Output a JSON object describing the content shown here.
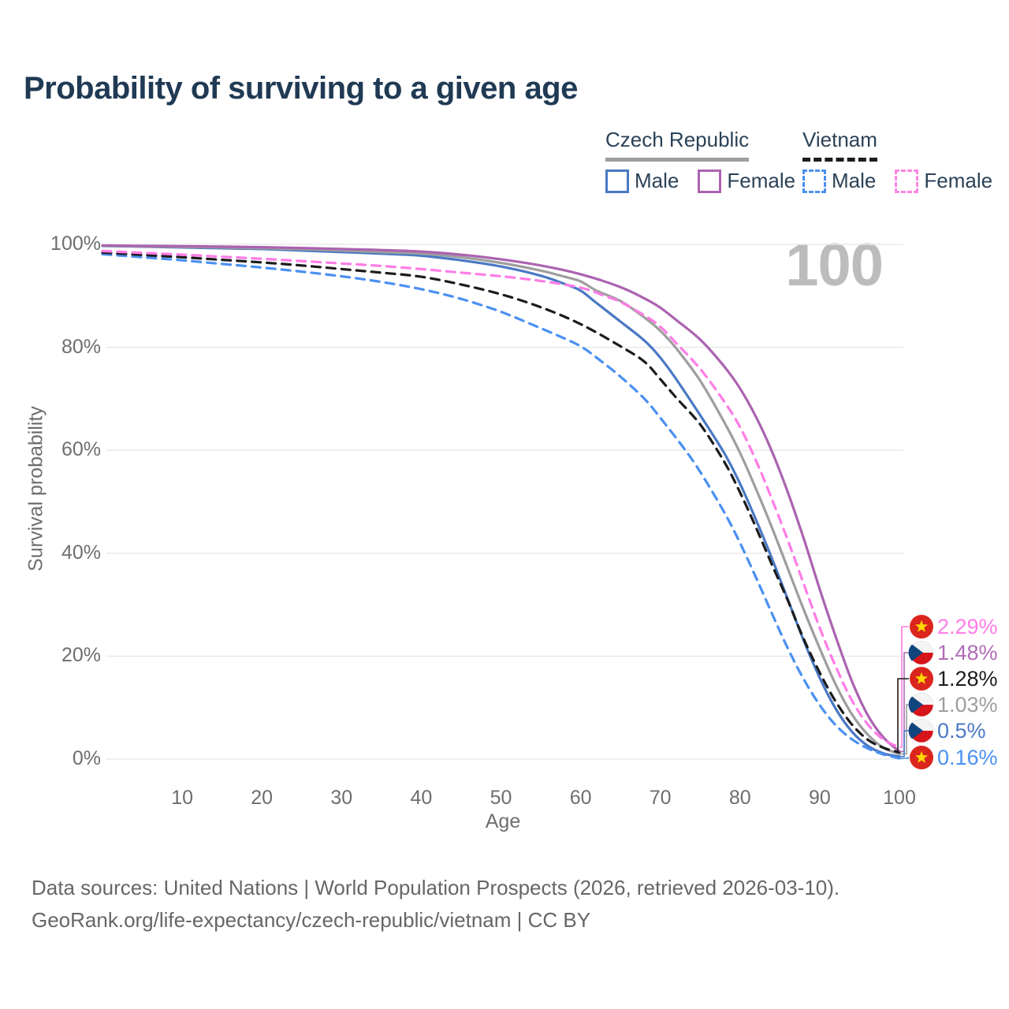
{
  "title": "Probability of surviving to a given age",
  "watermark": "100",
  "colors": {
    "title_text": "#203a54",
    "legend_text": "#2b4257",
    "axis_text": "#6e6e6e",
    "footer_text": "#666666",
    "watermark_text": "#bcbcbc",
    "gridline": "#eaeaea",
    "czech_male": "#4a79c4",
    "czech_female": "#ab63b0",
    "czech_both": "#9e9e9e",
    "vietnam_male": "#4a90f2",
    "vietnam_female": "#ff7ce6",
    "vietnam_both": "#1c1c1c",
    "flag_vietnam_red": "#da251d",
    "flag_vietnam_star": "#ffd800",
    "flag_czech_white": "#f4f4f4",
    "flag_czech_red": "#d7141a",
    "flag_czech_blue": "#11457e"
  },
  "legend": {
    "groups": [
      {
        "label": "Czech Republic",
        "line_color": "#9e9e9e",
        "line_style": "solid",
        "items": [
          {
            "label": "Male",
            "color": "#4a79c4",
            "style": "solid"
          },
          {
            "label": "Female",
            "color": "#ab63b0",
            "style": "solid"
          }
        ]
      },
      {
        "label": "Vietnam",
        "line_color": "#1c1c1c",
        "line_style": "dashed",
        "items": [
          {
            "label": "Male",
            "color": "#4a90f2",
            "style": "dashed"
          },
          {
            "label": "Female",
            "color": "#ff85e3",
            "style": "dashed"
          }
        ]
      }
    ]
  },
  "chart_data": {
    "type": "line",
    "title": "Probability of surviving to a given age",
    "xlabel": "Age",
    "ylabel": "Survival probability",
    "xlim": [
      0,
      100
    ],
    "ylim": [
      0,
      100
    ],
    "grid": "horizontal",
    "x_ticks": [
      10,
      20,
      30,
      40,
      50,
      60,
      70,
      80,
      90,
      100
    ],
    "y_ticks": [
      {
        "pct": 0,
        "label": "0%"
      },
      {
        "pct": 20,
        "label": "20%"
      },
      {
        "pct": 40,
        "label": "40%"
      },
      {
        "pct": 60,
        "label": "60%"
      },
      {
        "pct": 80,
        "label": "80%"
      },
      {
        "pct": 100,
        "label": "100%"
      }
    ],
    "series": [
      {
        "key": "czech_male",
        "country": "Czech Republic",
        "sex": "Male",
        "color": "#4a79c4",
        "dash": false,
        "points": [
          [
            0,
            99.7
          ],
          [
            5,
            99.55
          ],
          [
            10,
            99.4
          ],
          [
            15,
            99.25
          ],
          [
            20,
            99.1
          ],
          [
            25,
            98.8
          ],
          [
            30,
            98.5
          ],
          [
            35,
            98.2
          ],
          [
            40,
            97.8
          ],
          [
            45,
            96.9
          ],
          [
            50,
            95.7
          ],
          [
            55,
            93.9
          ],
          [
            58,
            92.3
          ],
          [
            60,
            91.0
          ],
          [
            62,
            88.6
          ],
          [
            65,
            85.0
          ],
          [
            68,
            81.3
          ],
          [
            70,
            78.0
          ],
          [
            72,
            73.8
          ],
          [
            75,
            66.8
          ],
          [
            78,
            59.5
          ],
          [
            80,
            53.5
          ],
          [
            82,
            46.5
          ],
          [
            84,
            39.0
          ],
          [
            86,
            31.0
          ],
          [
            88,
            23.0
          ],
          [
            90,
            15.8
          ],
          [
            92,
            9.8
          ],
          [
            94,
            5.4
          ],
          [
            96,
            2.6
          ],
          [
            98,
            1.1
          ],
          [
            100,
            0.5
          ]
        ]
      },
      {
        "key": "czech_both",
        "country": "Czech Republic",
        "sex": "Both",
        "color": "#9e9e9e",
        "dash": false,
        "points": [
          [
            0,
            99.75
          ],
          [
            5,
            99.6
          ],
          [
            10,
            99.5
          ],
          [
            15,
            99.4
          ],
          [
            20,
            99.25
          ],
          [
            25,
            99.05
          ],
          [
            30,
            98.8
          ],
          [
            35,
            98.5
          ],
          [
            40,
            98.2
          ],
          [
            45,
            97.5
          ],
          [
            50,
            96.4
          ],
          [
            55,
            94.9
          ],
          [
            58,
            93.7
          ],
          [
            60,
            92.8
          ],
          [
            62,
            91.0
          ],
          [
            65,
            89.0
          ],
          [
            68,
            85.8
          ],
          [
            70,
            83.2
          ],
          [
            72,
            79.8
          ],
          [
            75,
            73.5
          ],
          [
            78,
            65.5
          ],
          [
            80,
            59.5
          ],
          [
            82,
            52.5
          ],
          [
            84,
            45.0
          ],
          [
            86,
            37.0
          ],
          [
            88,
            29.0
          ],
          [
            90,
            21.5
          ],
          [
            92,
            14.5
          ],
          [
            94,
            8.8
          ],
          [
            96,
            4.8
          ],
          [
            98,
            2.2
          ],
          [
            100,
            1.03
          ]
        ]
      },
      {
        "key": "czech_female",
        "country": "Czech Republic",
        "sex": "Female",
        "color": "#ab63b0",
        "dash": false,
        "points": [
          [
            0,
            99.8
          ],
          [
            5,
            99.7
          ],
          [
            10,
            99.65
          ],
          [
            15,
            99.55
          ],
          [
            20,
            99.45
          ],
          [
            25,
            99.3
          ],
          [
            30,
            99.1
          ],
          [
            35,
            98.9
          ],
          [
            40,
            98.6
          ],
          [
            45,
            98.0
          ],
          [
            50,
            97.1
          ],
          [
            55,
            95.9
          ],
          [
            60,
            94.2
          ],
          [
            65,
            91.7
          ],
          [
            68,
            89.5
          ],
          [
            70,
            87.7
          ],
          [
            72,
            85.3
          ],
          [
            75,
            81.5
          ],
          [
            78,
            76.3
          ],
          [
            80,
            72.0
          ],
          [
            82,
            66.5
          ],
          [
            84,
            59.8
          ],
          [
            86,
            51.8
          ],
          [
            88,
            42.8
          ],
          [
            90,
            33.0
          ],
          [
            92,
            23.8
          ],
          [
            94,
            15.3
          ],
          [
            96,
            8.6
          ],
          [
            98,
            4.2
          ],
          [
            100,
            1.48
          ]
        ]
      },
      {
        "key": "vietnam_male",
        "country": "Vietnam",
        "sex": "Male",
        "color": "#4a90f2",
        "dash": true,
        "points": [
          [
            0,
            98.1
          ],
          [
            5,
            97.5
          ],
          [
            10,
            96.9
          ],
          [
            15,
            96.2
          ],
          [
            20,
            95.5
          ],
          [
            25,
            94.7
          ],
          [
            30,
            93.8
          ],
          [
            35,
            92.7
          ],
          [
            40,
            91.3
          ],
          [
            45,
            89.4
          ],
          [
            50,
            86.9
          ],
          [
            55,
            83.7
          ],
          [
            58,
            81.7
          ],
          [
            60,
            80.2
          ],
          [
            62,
            78.0
          ],
          [
            65,
            74.3
          ],
          [
            68,
            70.0
          ],
          [
            70,
            66.3
          ],
          [
            73,
            60.3
          ],
          [
            75,
            55.8
          ],
          [
            78,
            48.0
          ],
          [
            80,
            42.0
          ],
          [
            82,
            35.3
          ],
          [
            84,
            28.3
          ],
          [
            86,
            21.5
          ],
          [
            88,
            15.5
          ],
          [
            90,
            10.5
          ],
          [
            92,
            6.6
          ],
          [
            94,
            3.9
          ],
          [
            96,
            2.1
          ],
          [
            98,
            0.9
          ],
          [
            100,
            0.16
          ]
        ]
      },
      {
        "key": "vietnam_both",
        "country": "Vietnam",
        "sex": "Both",
        "color": "#1c1c1c",
        "dash": true,
        "points": [
          [
            0,
            98.4
          ],
          [
            5,
            97.95
          ],
          [
            10,
            97.5
          ],
          [
            15,
            97.0
          ],
          [
            20,
            96.5
          ],
          [
            25,
            95.9
          ],
          [
            30,
            95.2
          ],
          [
            35,
            94.5
          ],
          [
            40,
            93.7
          ],
          [
            45,
            92.2
          ],
          [
            50,
            90.3
          ],
          [
            55,
            87.8
          ],
          [
            60,
            84.5
          ],
          [
            65,
            80.2
          ],
          [
            68,
            77.2
          ],
          [
            70,
            73.8
          ],
          [
            72,
            70.2
          ],
          [
            75,
            65.0
          ],
          [
            78,
            57.8
          ],
          [
            80,
            51.8
          ],
          [
            82,
            45.0
          ],
          [
            84,
            37.8
          ],
          [
            86,
            30.8
          ],
          [
            88,
            23.3
          ],
          [
            90,
            16.8
          ],
          [
            92,
            11.2
          ],
          [
            94,
            6.8
          ],
          [
            96,
            3.8
          ],
          [
            98,
            2.2
          ],
          [
            100,
            1.28
          ]
        ]
      },
      {
        "key": "vietnam_female",
        "country": "Vietnam",
        "sex": "Female",
        "color": "#ff7ce6",
        "dash": true,
        "points": [
          [
            0,
            98.7
          ],
          [
            5,
            98.35
          ],
          [
            10,
            98.0
          ],
          [
            15,
            97.6
          ],
          [
            20,
            97.2
          ],
          [
            25,
            96.75
          ],
          [
            30,
            96.3
          ],
          [
            35,
            95.8
          ],
          [
            40,
            95.2
          ],
          [
            45,
            94.5
          ],
          [
            50,
            93.8
          ],
          [
            55,
            92.9
          ],
          [
            60,
            91.6
          ],
          [
            63,
            90.0
          ],
          [
            65,
            88.8
          ],
          [
            68,
            86.2
          ],
          [
            70,
            84.0
          ],
          [
            72,
            80.8
          ],
          [
            75,
            75.8
          ],
          [
            78,
            69.5
          ],
          [
            80,
            64.5
          ],
          [
            82,
            58.0
          ],
          [
            84,
            50.5
          ],
          [
            86,
            42.5
          ],
          [
            88,
            34.0
          ],
          [
            90,
            25.5
          ],
          [
            92,
            18.0
          ],
          [
            94,
            11.5
          ],
          [
            96,
            6.8
          ],
          [
            98,
            3.8
          ],
          [
            100,
            2.29
          ]
        ]
      }
    ],
    "end_labels": [
      {
        "value": "2.29%",
        "series": "vietnam_female",
        "flag": "vietnam",
        "color": "#ff7ce6"
      },
      {
        "value": "1.48%",
        "series": "czech_female",
        "flag": "czech",
        "color": "#b06cb4"
      },
      {
        "value": "1.28%",
        "series": "vietnam_both",
        "flag": "vietnam",
        "color": "#1c1c1c"
      },
      {
        "value": "1.03%",
        "series": "czech_both",
        "flag": "czech",
        "color": "#9e9e9e"
      },
      {
        "value": "0.5%",
        "series": "czech_male",
        "flag": "czech",
        "color": "#4a79c4"
      },
      {
        "value": "0.16%",
        "series": "vietnam_male",
        "flag": "vietnam",
        "color": "#4a90f2"
      }
    ]
  },
  "footer": {
    "line1": "Data sources: United Nations | World Population Prospects (2026, retrieved 2026-03-10).",
    "line2": "GeoRank.org/life-expectancy/czech-republic/vietnam | CC BY"
  }
}
